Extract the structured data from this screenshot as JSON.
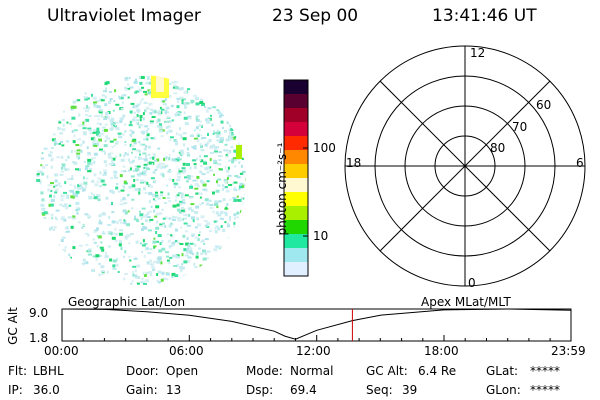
{
  "header": {
    "instrument": "Ultraviolet Imager",
    "date": "23 Sep 00",
    "time": "13:41:46 UT"
  },
  "colorbar": {
    "unit_label": "photon cm⁻²s⁻¹",
    "ticks": [
      "100",
      "10"
    ],
    "scale": "log",
    "colors": [
      "#1a0030",
      "#5a0030",
      "#a00028",
      "#d4003a",
      "#ff2a00",
      "#ff8800",
      "#ffcc00",
      "#fff8d0",
      "#ffff00",
      "#a8f000",
      "#20d800",
      "#20e8a0",
      "#a0e8f0",
      "#e0f0ff"
    ]
  },
  "polar_grid": {
    "labels": {
      "top": "12",
      "bottom": "0",
      "left": "18",
      "right": "6",
      "ring_outer": "60",
      "ring_mid": "70",
      "ring_inner": "80"
    }
  },
  "timeline": {
    "left_label": "Geographic Lat/Lon",
    "right_label": "Apex MLat/MLT",
    "axis_label": "GC Alt",
    "y_ticks": [
      "9.0",
      "1.8"
    ],
    "x_ticks": [
      "00:00",
      "06:00",
      "12:00",
      "18:00",
      "23:59"
    ],
    "marker_color": "#cc0000",
    "chart_data": {
      "type": "line",
      "xlabel": "",
      "ylabel": "GC Alt",
      "ylim": [
        1.8,
        9.0
      ],
      "x": [
        "00:00",
        "02:00",
        "04:00",
        "06:00",
        "08:00",
        "10:00",
        "10:30",
        "11:00",
        "12:00",
        "13:41",
        "15:00",
        "18:00",
        "21:00",
        "23:59"
      ],
      "y": [
        9.0,
        8.9,
        8.4,
        7.6,
        6.2,
        4.0,
        2.9,
        2.2,
        4.2,
        6.4,
        7.6,
        8.8,
        9.0,
        8.7
      ],
      "marker_x": "13:41"
    }
  },
  "status": {
    "flt_label": "Flt:",
    "flt_value": "LBHL",
    "ip_label": "IP:",
    "ip_value": "36.0",
    "door_label": "Door:",
    "door_value": "Open",
    "gain_label": "Gain:",
    "gain_value": "13",
    "mode_label": "Mode:",
    "mode_value": "Normal",
    "dsp_label": "Dsp:",
    "dsp_value": "69.4",
    "gcalt_label": "GC Alt:",
    "gcalt_value": "6.4 Re",
    "seq_label": "Seq:",
    "seq_value": "39",
    "glat_label": "GLat:",
    "glat_value": "*****",
    "glon_label": "GLon:",
    "glon_value": "*****"
  }
}
